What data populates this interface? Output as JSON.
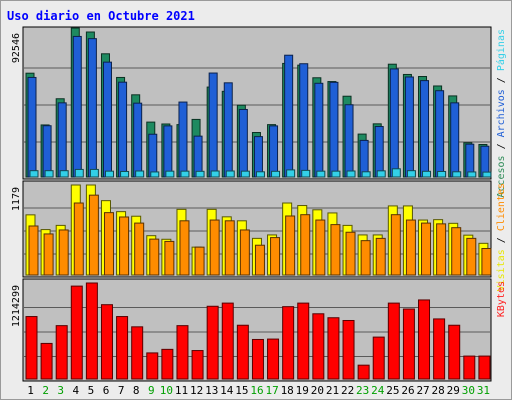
{
  "chart_data": {
    "type": "bar",
    "title": "Uso diario en Octubre 2021",
    "categories": [
      "1",
      "2",
      "3",
      "4",
      "5",
      "6",
      "7",
      "8",
      "9",
      "10",
      "11",
      "12",
      "13",
      "14",
      "15",
      "16",
      "17",
      "18",
      "19",
      "20",
      "21",
      "22",
      "23",
      "24",
      "25",
      "26",
      "27",
      "28",
      "29",
      "30",
      "31"
    ],
    "weekend_days": [
      "2",
      "3",
      "9",
      "10",
      "16",
      "17",
      "23",
      "24",
      "30",
      "31"
    ],
    "legend_separator": " / ",
    "panels": [
      {
        "ymax_label": "92546",
        "ymax": 92546,
        "legend": [
          {
            "label": "Accesos",
            "color": "#2e8b57"
          },
          {
            "label": "Archivos",
            "color": "#1f5fd6"
          },
          {
            "label": "Páginas",
            "color": "#33d0e8"
          }
        ],
        "series": [
          {
            "name": "Accesos",
            "color": "#1e8a60",
            "values": [
              65800,
              33000,
              49600,
              94400,
              91900,
              78100,
              63100,
              52100,
              34800,
              33600,
              33200,
              36500,
              57000,
              54300,
              45500,
              28200,
              33200,
              72000,
              70900,
              62900,
              60500,
              51200,
              27200,
              33700,
              71500,
              65000,
              63700,
              57700,
              51400,
              21700,
              20600
            ]
          },
          {
            "name": "Archivos",
            "color": "#1f5fd6",
            "values": [
              63100,
              32500,
              47000,
              89100,
              87700,
              72800,
              60100,
              46800,
              27100,
              32400,
              47500,
              25900,
              65900,
              59700,
              42800,
              25600,
              32400,
              77200,
              71800,
              59400,
              60000,
              45800,
              23200,
              32000,
              68500,
              63400,
              61100,
              54700,
              47000,
              20800,
              19500
            ]
          },
          {
            "name": "Páginas",
            "color": "#33d0e8",
            "values": [
              4000,
              4000,
              4000,
              4800,
              4800,
              3700,
              3500,
              3800,
              3200,
              3700,
              3700,
              3600,
              3800,
              3800,
              3700,
              3300,
              3600,
              4500,
              4200,
              3700,
              3700,
              3800,
              3300,
              3900,
              5200,
              4000,
              3600,
              3500,
              3300,
              3200,
              3100
            ]
          }
        ]
      },
      {
        "ymax_label": "1179",
        "ymax": 1179,
        "legend": [
          {
            "label": "Visitas",
            "color": "#e8e800"
          },
          {
            "label": "Clientes",
            "color": "#ff8c00"
          }
        ],
        "series": [
          {
            "name": "Visitas",
            "color": "#ffff00",
            "values": [
              788,
              595,
              650,
              1179,
              1179,
              974,
              830,
              770,
              515,
              468,
              860,
              365,
              860,
              762,
              710,
              480,
              525,
              943,
              910,
              854,
              813,
              650,
              525,
              525,
              905,
              905,
              720,
              725,
              677,
              522,
              415
            ]
          },
          {
            "name": "Clientes",
            "color": "#ff8c00",
            "values": [
              642,
              538,
              590,
              943,
              1046,
              817,
              760,
              680,
              470,
              440,
              710,
              365,
              720,
              710,
              590,
              390,
              490,
              773,
              790,
              720,
              660,
              560,
              450,
              480,
              790,
              720,
              680,
              670,
              620,
              480,
              347
            ]
          }
        ]
      },
      {
        "ymax_label": "1214299",
        "ymax": 1214299,
        "legend": [
          {
            "label": "KBytes",
            "color": "#ff2020"
          }
        ],
        "series": [
          {
            "name": "KBytes",
            "color": "#ff0000",
            "values": [
              790000,
              450000,
              675000,
              1175000,
              1214299,
              940000,
              790000,
              660000,
              330000,
              375000,
              675000,
              360000,
              920000,
              960000,
              680000,
              500000,
              505000,
              915000,
              960000,
              825000,
              775000,
              740000,
              175000,
              530000,
              960000,
              885000,
              1000000,
              760000,
              680000,
              290000,
              290000
            ]
          }
        ]
      }
    ],
    "colors": {
      "title": "#0000ff",
      "weekday_label": "#000000",
      "weekend_label": "#00a000",
      "plot_bg": "#c0c0c0",
      "frame_bg": "#ececec",
      "grid": "#5a5a5a"
    }
  }
}
